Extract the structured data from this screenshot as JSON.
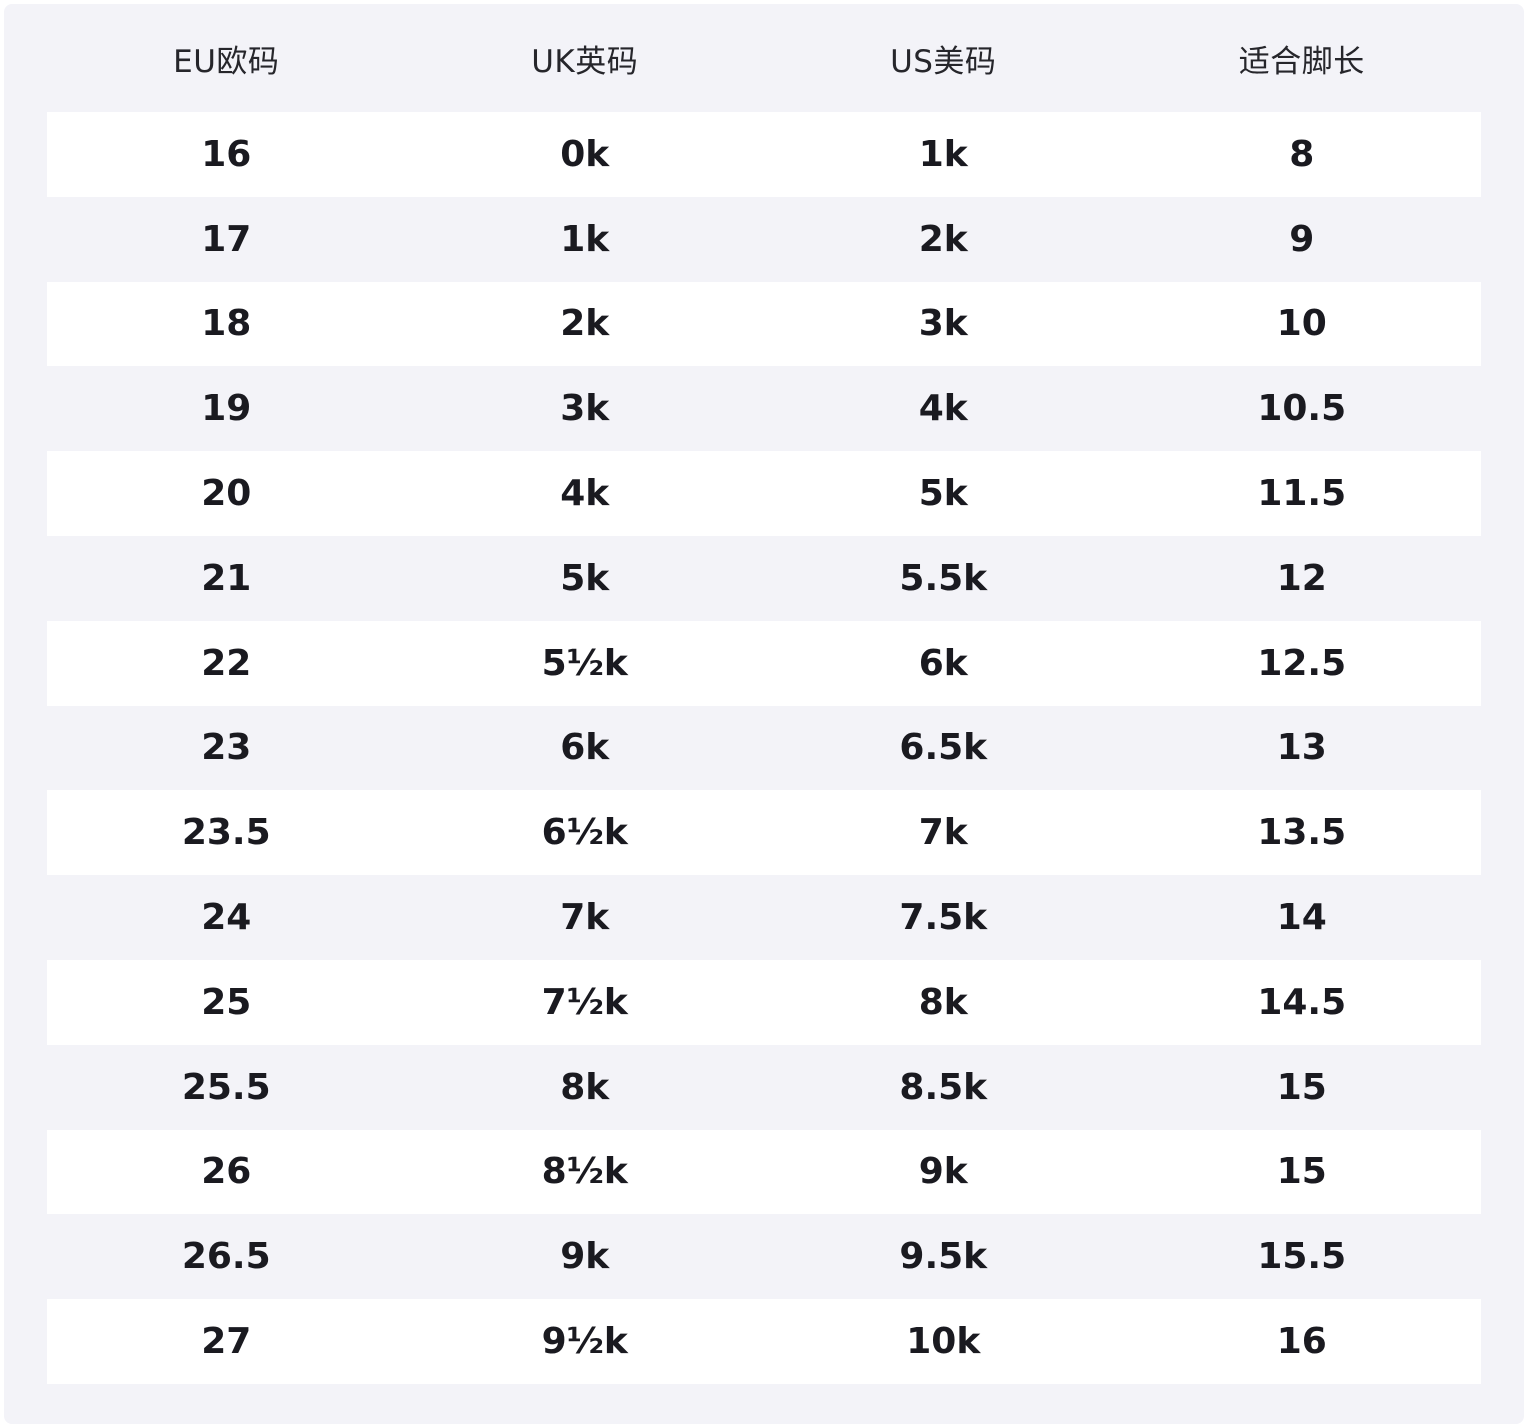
{
  "table": {
    "columns": [
      {
        "label": "EU欧码"
      },
      {
        "label": "UK英码"
      },
      {
        "label": "US美码"
      },
      {
        "label": "适合脚长"
      }
    ],
    "rows": [
      [
        "16",
        "0k",
        "1k",
        "8"
      ],
      [
        "17",
        "1k",
        "2k",
        "9"
      ],
      [
        "18",
        "2k",
        "3k",
        "10"
      ],
      [
        "19",
        "3k",
        "4k",
        "10.5"
      ],
      [
        "20",
        "4k",
        "5k",
        "11.5"
      ],
      [
        "21",
        "5k",
        "5.5k",
        "12"
      ],
      [
        "22",
        "5½k",
        "6k",
        "12.5"
      ],
      [
        "23",
        "6k",
        "6.5k",
        "13"
      ],
      [
        "23.5",
        "6½k",
        "7k",
        "13.5"
      ],
      [
        "24",
        "7k",
        "7.5k",
        "14"
      ],
      [
        "25",
        "7½k",
        "8k",
        "14.5"
      ],
      [
        "25.5",
        "8k",
        "8.5k",
        "15"
      ],
      [
        "26",
        "8½k",
        "9k",
        "15"
      ],
      [
        "26.5",
        "9k",
        "9.5k",
        "15.5"
      ],
      [
        "27",
        "9½k",
        "10k",
        "16"
      ]
    ],
    "colors": {
      "page_bg": "#f3f3f8",
      "row_alt_bg": "#ffffff",
      "header_text": "#26262b",
      "cell_text": "#1a1a20"
    }
  },
  "chart_data": {
    "type": "table",
    "title": "",
    "columns": [
      "EU欧码",
      "UK英码",
      "US美码",
      "适合脚长"
    ],
    "rows": [
      [
        "16",
        "0k",
        "1k",
        "8"
      ],
      [
        "17",
        "1k",
        "2k",
        "9"
      ],
      [
        "18",
        "2k",
        "3k",
        "10"
      ],
      [
        "19",
        "3k",
        "4k",
        "10.5"
      ],
      [
        "20",
        "4k",
        "5k",
        "11.5"
      ],
      [
        "21",
        "5k",
        "5.5k",
        "12"
      ],
      [
        "22",
        "5½k",
        "6k",
        "12.5"
      ],
      [
        "23",
        "6k",
        "6.5k",
        "13"
      ],
      [
        "23.5",
        "6½k",
        "7k",
        "13.5"
      ],
      [
        "24",
        "7k",
        "7.5k",
        "14"
      ],
      [
        "25",
        "7½k",
        "8k",
        "14.5"
      ],
      [
        "25.5",
        "8k",
        "8.5k",
        "15"
      ],
      [
        "26",
        "8½k",
        "9k",
        "15"
      ],
      [
        "26.5",
        "9k",
        "9.5k",
        "15.5"
      ],
      [
        "27",
        "9½k",
        "10k",
        "16"
      ]
    ],
    "layout": {
      "zebra_striping": true,
      "first_data_row_background": "white",
      "columns_equal_width": true
    }
  }
}
